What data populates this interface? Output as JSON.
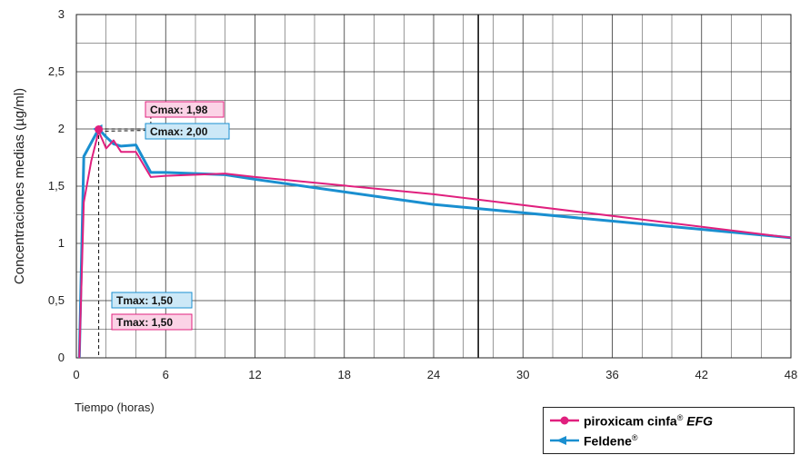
{
  "chart_data": {
    "type": "line",
    "xlabel": "Tiempo (horas)",
    "ylabel": "Concentraciones medias (µg/ml)",
    "xlim": [
      0,
      48
    ],
    "ylim": [
      0,
      3
    ],
    "x_ticks": [
      0,
      6,
      12,
      18,
      24,
      30,
      36,
      42,
      48
    ],
    "x_tick_labels": [
      "0",
      "6",
      "12",
      "18",
      "24",
      "30",
      "36",
      "42",
      "48"
    ],
    "y_ticks": [
      0,
      0.5,
      1,
      1.5,
      2,
      2.5,
      3
    ],
    "y_tick_labels": [
      "0",
      "0,5",
      "1",
      "1,5",
      "2",
      "2,5",
      "3"
    ],
    "x_minor_step": 2,
    "y_minor_step": 0.25,
    "grid": true,
    "legend_position": "bottom-right",
    "series": [
      {
        "name": "piroxicam cinfa® EFG",
        "name_main": "piroxicam cinfa",
        "name_reg": "®",
        "name_suffix": "EFG",
        "color": "#e0207e",
        "marker": "circle",
        "x": [
          0.2,
          0.5,
          1,
          1.5,
          2,
          2.5,
          3,
          4,
          5,
          6,
          8,
          10,
          12,
          24,
          48
        ],
        "y": [
          0,
          1.36,
          1.72,
          1.98,
          1.83,
          1.9,
          1.8,
          1.8,
          1.58,
          1.59,
          1.6,
          1.61,
          1.58,
          1.43,
          1.05
        ]
      },
      {
        "name": "Feldene®",
        "name_main": "Feldene",
        "name_reg": "®",
        "name_suffix": "",
        "color": "#1a8fd0",
        "marker": "triangle-left",
        "x": [
          0.2,
          0.5,
          1,
          1.5,
          2,
          2.5,
          3,
          4,
          5,
          6,
          8,
          10,
          12,
          24,
          48
        ],
        "y": [
          0,
          1.76,
          1.88,
          2.0,
          1.93,
          1.87,
          1.85,
          1.86,
          1.62,
          1.62,
          1.61,
          1.6,
          1.56,
          1.34,
          1.05
        ]
      }
    ],
    "annotations": [
      {
        "text": "Cmax: 1,98",
        "series": 0,
        "kind": "cmax",
        "value": 1.98
      },
      {
        "text": "Cmax: 2,00",
        "series": 1,
        "kind": "cmax",
        "value": 2.0
      },
      {
        "text": "Tmax: 1,50",
        "series": 1,
        "kind": "tmax",
        "value": 1.5
      },
      {
        "text": "Tmax: 1,50",
        "series": 0,
        "kind": "tmax",
        "value": 1.5
      }
    ],
    "vertical_marker_x": 27,
    "tmax_x": 1.5
  }
}
